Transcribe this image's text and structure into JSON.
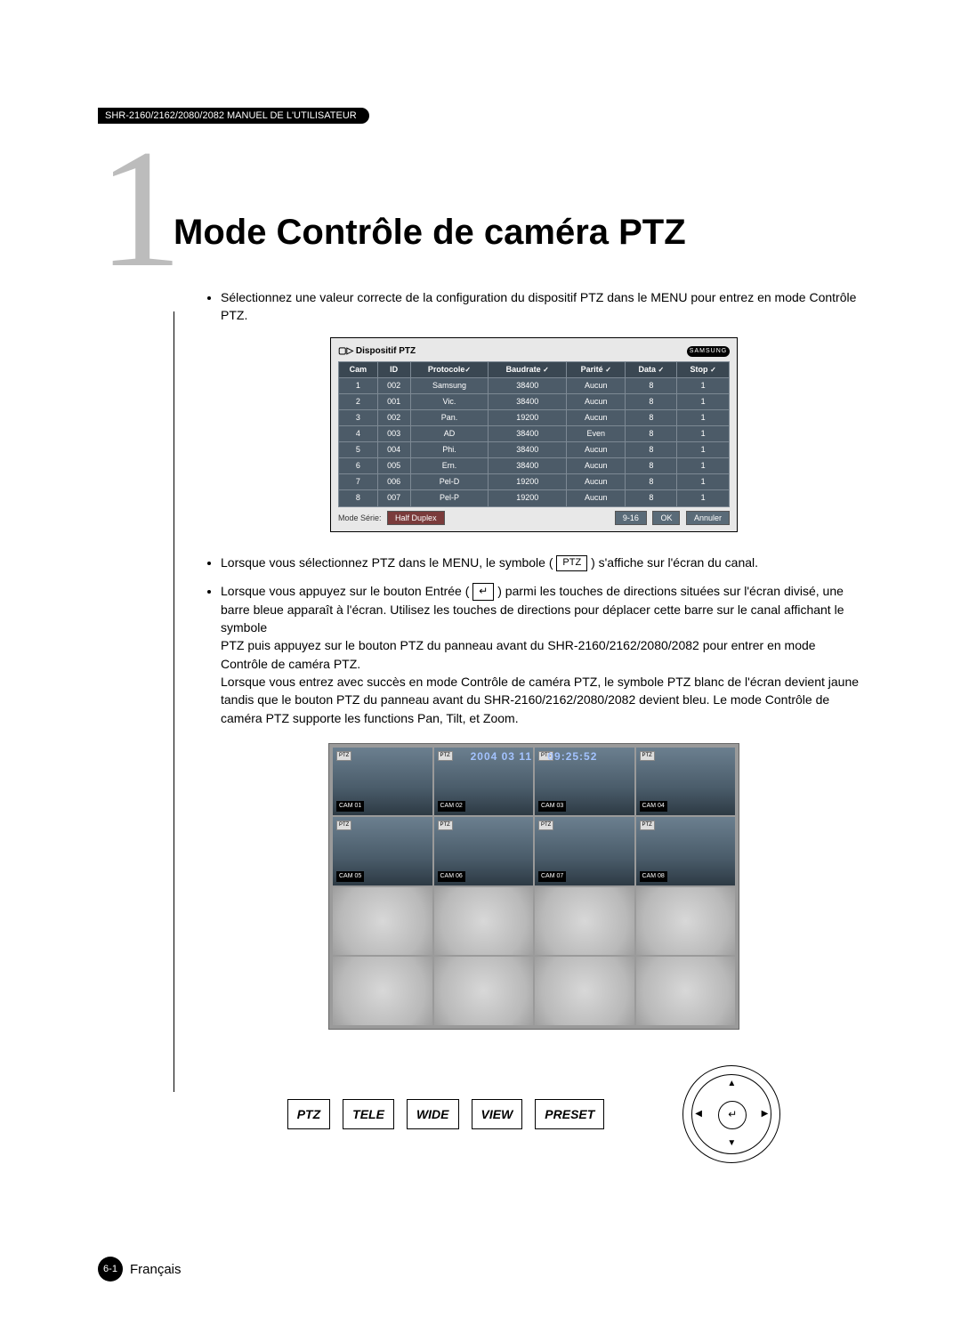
{
  "header": {
    "doc_ref": "SHR-2160/2162/2080/2082 MANUEL DE L'UTILISATEUR"
  },
  "chapter": {
    "number": "1",
    "number_color": "#bcbcbc",
    "title": "Mode Contrôle de caméra PTZ"
  },
  "paragraphs": {
    "p1": "Sélectionnez une valeur correcte de la configuration du dispositif PTZ dans le MENU pour entrez en mode Contrôle PTZ.",
    "p2_a": "Lorsque vous sélectionnez PTZ dans le MENU, le symbole (",
    "p2_inline": "PTZ",
    "p2_b": ") s'affiche sur l'écran du canal.",
    "p3_a": "Lorsque vous appuyez sur le bouton Entrée (",
    "p3_inline": "↵",
    "p3_b": ") parmi les touches de directions situées sur l'écran divisé, une barre bleue apparaît à l'écran. Utilisez les touches de directions pour déplacer cette barre sur le canal affichant le symbole",
    "p3_c": "PTZ puis appuyez sur le bouton PTZ du panneau avant du SHR-2160/2162/2080/2082 pour entrer en mode Contrôle de caméra PTZ.",
    "p3_d": "Lorsque vous entrez avec succès en mode Contrôle de caméra PTZ, le symbole PTZ blanc de l'écran devient jaune tandis que le bouton PTZ du panneau avant du SHR-2160/2162/2080/2082 devient bleu. Le mode Contrôle de caméra PTZ supporte les functions Pan, Tilt, et Zoom."
  },
  "device_panel": {
    "title": "Dispositif PTZ",
    "brand": "SAMSUNG",
    "columns": [
      "Cam",
      "ID",
      "Protocole",
      "Baudrate",
      "Parité",
      "Data",
      "Stop"
    ],
    "check_mark": "✓",
    "rows": [
      {
        "cam": "1",
        "id": "002",
        "protocole": "Samsung",
        "baudrate": "38400",
        "parite": "Aucun",
        "data": "8",
        "stop": "1"
      },
      {
        "cam": "2",
        "id": "001",
        "protocole": "Vic.",
        "baudrate": "38400",
        "parite": "Aucun",
        "data": "8",
        "stop": "1"
      },
      {
        "cam": "3",
        "id": "002",
        "protocole": "Pan.",
        "baudrate": "19200",
        "parite": "Aucun",
        "data": "8",
        "stop": "1"
      },
      {
        "cam": "4",
        "id": "003",
        "protocole": "AD",
        "baudrate": "38400",
        "parite": "Even",
        "data": "8",
        "stop": "1"
      },
      {
        "cam": "5",
        "id": "004",
        "protocole": "Phi.",
        "baudrate": "38400",
        "parite": "Aucun",
        "data": "8",
        "stop": "1"
      },
      {
        "cam": "6",
        "id": "005",
        "protocole": "Ern.",
        "baudrate": "38400",
        "parite": "Aucun",
        "data": "8",
        "stop": "1"
      },
      {
        "cam": "7",
        "id": "006",
        "protocole": "Pel-D",
        "baudrate": "19200",
        "parite": "Aucun",
        "data": "8",
        "stop": "1"
      },
      {
        "cam": "8",
        "id": "007",
        "protocole": "Pel-P",
        "baudrate": "19200",
        "parite": "Aucun",
        "data": "8",
        "stop": "1"
      }
    ],
    "mode_serie_label": "Mode Série:",
    "mode_serie_value": "Half Duplex",
    "buttons": {
      "range": "9-16",
      "ok": "OK",
      "cancel": "Annuler"
    },
    "bg_color": "#e8e8e8",
    "table_bg": "#4c5b68",
    "table_header_bg": "#3a4752"
  },
  "preview": {
    "date": "2004 03 11",
    "time": "09:25:52",
    "date_color": "#a3c3ff",
    "ptz_tag": "PTZ",
    "cams_top": [
      "CAM 01",
      "CAM 02",
      "CAM 03",
      "CAM 04",
      "CAM 05",
      "CAM 06",
      "CAM 07",
      "CAM 08"
    ]
  },
  "hw_buttons": [
    "PTZ",
    "TELE",
    "WIDE",
    "VIEW",
    "PRESET"
  ],
  "dpad": {
    "up": "▲",
    "down": "▼",
    "left": "◀",
    "right": "▶",
    "center": "↵"
  },
  "footer": {
    "page": "6-1",
    "lang": "Français"
  }
}
